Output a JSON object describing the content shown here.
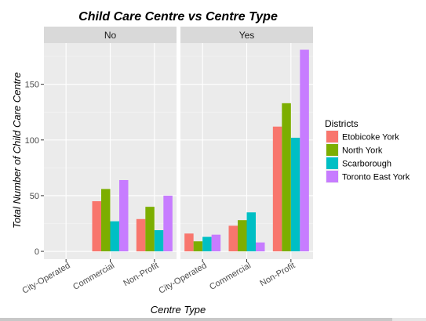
{
  "chart_data": {
    "type": "bar",
    "title": "Child Care Centre vs Centre Type",
    "xlabel": "Centre Type",
    "ylabel": "Total Number of Child Care Centre",
    "ylim": [
      -7,
      187
    ],
    "yticks": [
      "0",
      "50",
      "100",
      "150"
    ],
    "categories": [
      "City-Operated",
      "Commercial",
      "Non-Profit"
    ],
    "grid": true,
    "legend": {
      "title": "Districts",
      "position": "right"
    },
    "colors": [
      "#F8766D",
      "#7CAE00",
      "#00BFC4",
      "#C77CFF"
    ],
    "panels": [
      {
        "label": "No",
        "series": [
          {
            "name": "Etobicoke York",
            "values": [
              0,
              45,
              29
            ]
          },
          {
            "name": "North York",
            "values": [
              0,
              56,
              40
            ]
          },
          {
            "name": "Scarborough",
            "values": [
              0,
              27,
              19
            ]
          },
          {
            "name": "Toronto East York",
            "values": [
              0,
              64,
              50
            ]
          }
        ]
      },
      {
        "label": "Yes",
        "series": [
          {
            "name": "Etobicoke York",
            "values": [
              16,
              23,
              112
            ]
          },
          {
            "name": "North York",
            "values": [
              9,
              28,
              133
            ]
          },
          {
            "name": "Scarborough",
            "values": [
              13,
              35,
              102
            ]
          },
          {
            "name": "Toronto East York",
            "values": [
              15,
              8,
              181
            ]
          }
        ]
      }
    ]
  }
}
